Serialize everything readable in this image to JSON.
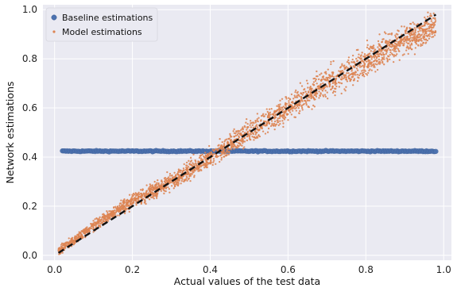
{
  "chart_data": {
    "type": "scatter",
    "title": "",
    "xlabel": "Actual values of the test data",
    "ylabel": "Network estimations",
    "xlim": [
      -0.03,
      1.02
    ],
    "ylim": [
      -0.02,
      1.02
    ],
    "xticks": [
      0.0,
      0.2,
      0.4,
      0.6,
      0.8,
      1.0
    ],
    "yticks": [
      0.0,
      0.2,
      0.4,
      0.6,
      0.8,
      1.0
    ],
    "xtick_labels": [
      "0.0",
      "0.2",
      "0.4",
      "0.6",
      "0.8",
      "1.0"
    ],
    "ytick_labels": [
      "0.0",
      "0.2",
      "0.4",
      "0.6",
      "0.8",
      "1.0"
    ],
    "grid": true,
    "legend_position": "top-left",
    "series": [
      {
        "name": "Baseline estimations",
        "color": "#4c72b0",
        "marker": "circle",
        "x": [
          0.02,
          0.05,
          0.08,
          0.1,
          0.15,
          0.2,
          0.25,
          0.3,
          0.35,
          0.4,
          0.45,
          0.5,
          0.55,
          0.6,
          0.65,
          0.7,
          0.75,
          0.8,
          0.85,
          0.9,
          0.95,
          0.98
        ],
        "y": [
          0.424,
          0.424,
          0.424,
          0.424,
          0.424,
          0.424,
          0.424,
          0.424,
          0.424,
          0.424,
          0.424,
          0.424,
          0.424,
          0.424,
          0.424,
          0.424,
          0.424,
          0.424,
          0.424,
          0.424,
          0.424,
          0.424
        ]
      },
      {
        "name": "Model estimations",
        "color": "#dd8452",
        "marker": "point",
        "x": [
          0.01,
          0.05,
          0.1,
          0.15,
          0.2,
          0.25,
          0.3,
          0.35,
          0.4,
          0.45,
          0.5,
          0.55,
          0.6,
          0.65,
          0.7,
          0.75,
          0.8,
          0.85,
          0.9,
          0.95,
          0.98
        ],
        "y": [
          0.02,
          0.06,
          0.12,
          0.17,
          0.22,
          0.26,
          0.3,
          0.35,
          0.4,
          0.45,
          0.5,
          0.55,
          0.6,
          0.65,
          0.7,
          0.74,
          0.79,
          0.84,
          0.88,
          0.91,
          0.94
        ]
      },
      {
        "name": "",
        "color": "#111111",
        "marker": "dashed-line",
        "x": [
          0.01,
          0.98
        ],
        "y": [
          0.01,
          0.98
        ]
      }
    ]
  }
}
